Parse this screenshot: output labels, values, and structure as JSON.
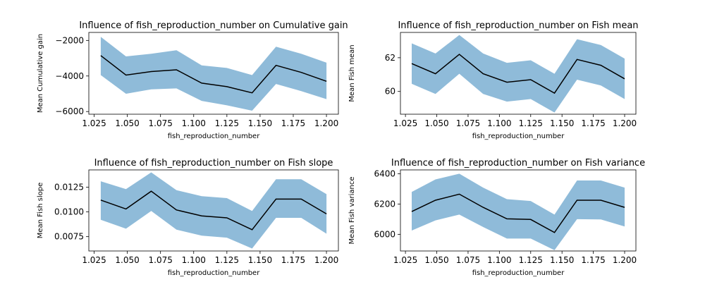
{
  "chart_data": [
    {
      "type": "line",
      "title": "Influence of fish_reproduction_number on Cumulative gain",
      "xlabel": "fish_reproduction_number",
      "ylabel": "Mean Cumulative gain",
      "xlim": [
        1.021,
        1.209
      ],
      "ylim": [
        -6150,
        -1550
      ],
      "xticks": [
        1.025,
        1.05,
        1.075,
        1.1,
        1.125,
        1.15,
        1.175,
        1.2
      ],
      "xtick_labels": [
        "1.025",
        "1.050",
        "1.075",
        "1.100",
        "1.125",
        "1.150",
        "1.175",
        "1.200"
      ],
      "yticks": [
        -6000,
        -4000,
        -2000
      ],
      "ytick_labels": [
        "−6000",
        "−4000",
        "−2000"
      ],
      "x": [
        1.03,
        1.049,
        1.068,
        1.087,
        1.106,
        1.125,
        1.144,
        1.162,
        1.181,
        1.2
      ],
      "mean": [
        -2850,
        -3950,
        -3750,
        -3650,
        -4400,
        -4600,
        -4950,
        -3400,
        -3800,
        -4300
      ],
      "lower": [
        -3950,
        -5000,
        -4750,
        -4700,
        -5400,
        -5650,
        -5950,
        -4450,
        -4850,
        -5300
      ],
      "upper": [
        -1800,
        -2900,
        -2750,
        -2550,
        -3400,
        -3550,
        -3950,
        -2350,
        -2750,
        -3250
      ],
      "grid": false,
      "colors": {
        "line": "#000000",
        "band": "#1f77b4"
      }
    },
    {
      "type": "line",
      "title": "Influence of fish_reproduction_number on Fish mean",
      "xlabel": "fish_reproduction_number",
      "ylabel": "Mean Fish mean",
      "xlim": [
        1.021,
        1.209
      ],
      "ylim": [
        58.65,
        63.5
      ],
      "xticks": [
        1.025,
        1.05,
        1.075,
        1.1,
        1.125,
        1.15,
        1.175,
        1.2
      ],
      "xtick_labels": [
        "1.025",
        "1.050",
        "1.075",
        "1.100",
        "1.125",
        "1.150",
        "1.175",
        "1.200"
      ],
      "yticks": [
        60,
        62
      ],
      "ytick_labels": [
        "60",
        "62"
      ],
      "x": [
        1.03,
        1.049,
        1.068,
        1.087,
        1.106,
        1.125,
        1.144,
        1.162,
        1.181,
        1.2
      ],
      "mean": [
        61.65,
        61.05,
        62.2,
        61.05,
        60.55,
        60.7,
        59.9,
        61.9,
        61.55,
        60.75
      ],
      "lower": [
        60.45,
        59.85,
        61.05,
        59.85,
        59.4,
        59.55,
        58.75,
        60.7,
        60.35,
        59.55
      ],
      "upper": [
        62.85,
        62.25,
        63.35,
        62.25,
        61.7,
        61.85,
        61.05,
        63.1,
        62.75,
        61.95
      ],
      "grid": false,
      "colors": {
        "line": "#000000",
        "band": "#1f77b4"
      }
    },
    {
      "type": "line",
      "title": "Influence of fish_reproduction_number on Fish slope",
      "xlabel": "fish_reproduction_number",
      "ylabel": "Mean Fish slope",
      "xlim": [
        1.021,
        1.209
      ],
      "ylim": [
        0.00605,
        0.01425
      ],
      "xticks": [
        1.025,
        1.05,
        1.075,
        1.1,
        1.125,
        1.15,
        1.175,
        1.2
      ],
      "xtick_labels": [
        "1.025",
        "1.050",
        "1.075",
        "1.100",
        "1.125",
        "1.150",
        "1.175",
        "1.200"
      ],
      "yticks": [
        0.0075,
        0.01,
        0.0125
      ],
      "ytick_labels": [
        "0.0075",
        "0.0100",
        "0.0125"
      ],
      "x": [
        1.03,
        1.049,
        1.068,
        1.087,
        1.106,
        1.125,
        1.144,
        1.162,
        1.181,
        1.2
      ],
      "mean": [
        0.0112,
        0.0103,
        0.0121,
        0.0102,
        0.0096,
        0.0094,
        0.0082,
        0.0113,
        0.0113,
        0.0098
      ],
      "lower": [
        0.0092,
        0.0083,
        0.0101,
        0.0082,
        0.0076,
        0.0074,
        0.0063,
        0.0094,
        0.0094,
        0.0078
      ],
      "upper": [
        0.0131,
        0.0123,
        0.014,
        0.0122,
        0.0116,
        0.0114,
        0.0101,
        0.0133,
        0.0133,
        0.0118
      ],
      "grid": false,
      "colors": {
        "line": "#000000",
        "band": "#1f77b4"
      }
    },
    {
      "type": "line",
      "title": "Influence of fish_reproduction_number on Fish variance",
      "xlabel": "fish_reproduction_number",
      "ylabel": "Mean Fish variance",
      "xlim": [
        1.021,
        1.209
      ],
      "ylim": [
        5890,
        6425
      ],
      "xticks": [
        1.025,
        1.05,
        1.075,
        1.1,
        1.125,
        1.15,
        1.175,
        1.2
      ],
      "xtick_labels": [
        "1.025",
        "1.050",
        "1.075",
        "1.100",
        "1.125",
        "1.150",
        "1.175",
        "1.200"
      ],
      "yticks": [
        6000,
        6200,
        6400
      ],
      "ytick_labels": [
        "6000",
        "6200",
        "6400"
      ],
      "x": [
        1.03,
        1.049,
        1.068,
        1.087,
        1.106,
        1.125,
        1.144,
        1.162,
        1.181,
        1.2
      ],
      "mean": [
        6150,
        6225,
        6265,
        6178,
        6102,
        6098,
        6012,
        6225,
        6225,
        6178
      ],
      "lower": [
        6025,
        6092,
        6130,
        6048,
        5972,
        5972,
        5895,
        6100,
        6098,
        6052
      ],
      "upper": [
        6280,
        6362,
        6400,
        6308,
        6232,
        6220,
        6130,
        6355,
        6355,
        6308
      ],
      "grid": false,
      "colors": {
        "line": "#000000",
        "band": "#1f77b4"
      }
    }
  ]
}
